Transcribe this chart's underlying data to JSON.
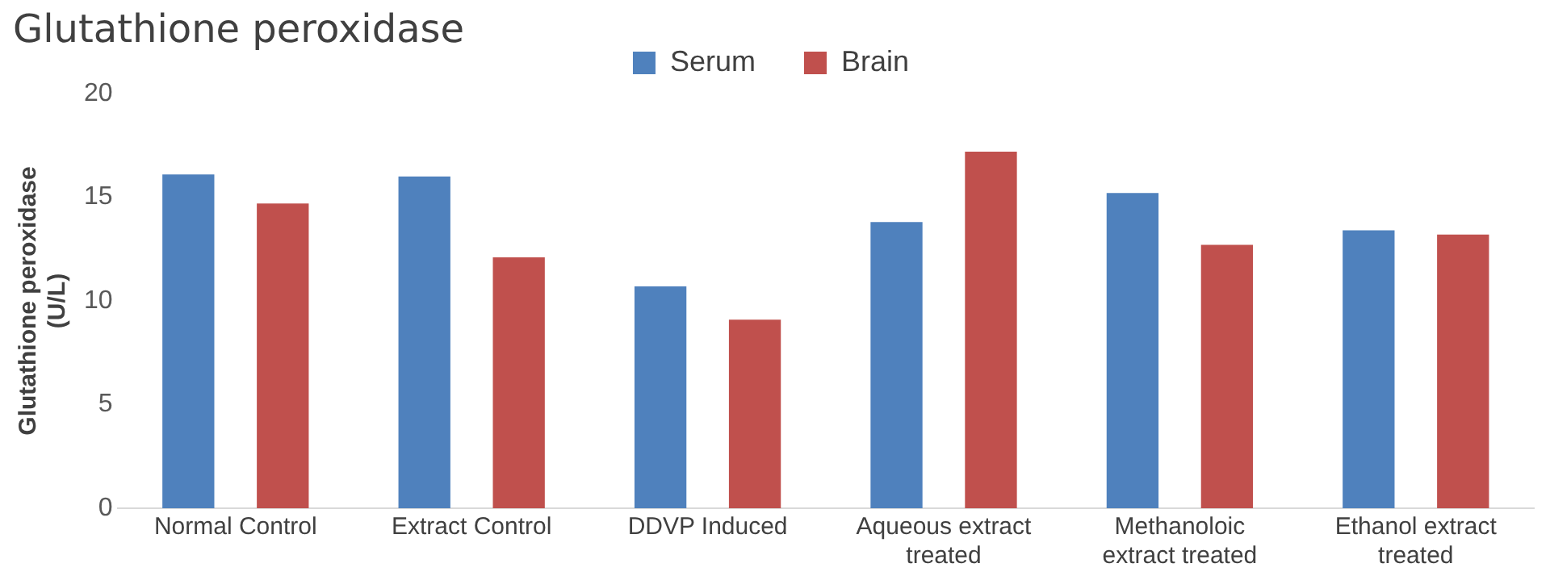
{
  "chart_data": {
    "type": "bar",
    "title": "Glutathione peroxidase",
    "ylabel": "Glutathione peroxidase (U/L)",
    "categories": [
      "Normal Control",
      "Extract Control",
      "DDVP Induced",
      "Aqueous extract treated",
      "Methanoloic extract treated",
      "Ethanol extract treated"
    ],
    "series": [
      {
        "name": "Serum",
        "color": "#4f81bd",
        "values": [
          16.1,
          16.0,
          10.7,
          13.8,
          15.2,
          13.4
        ]
      },
      {
        "name": "Brain",
        "color": "#c0504d",
        "values": [
          14.7,
          12.1,
          9.1,
          17.2,
          12.7,
          13.2
        ]
      }
    ],
    "ylim": [
      0,
      20
    ],
    "yticks": [
      0,
      5,
      10,
      15,
      20
    ],
    "grid": false,
    "legend": "top"
  }
}
